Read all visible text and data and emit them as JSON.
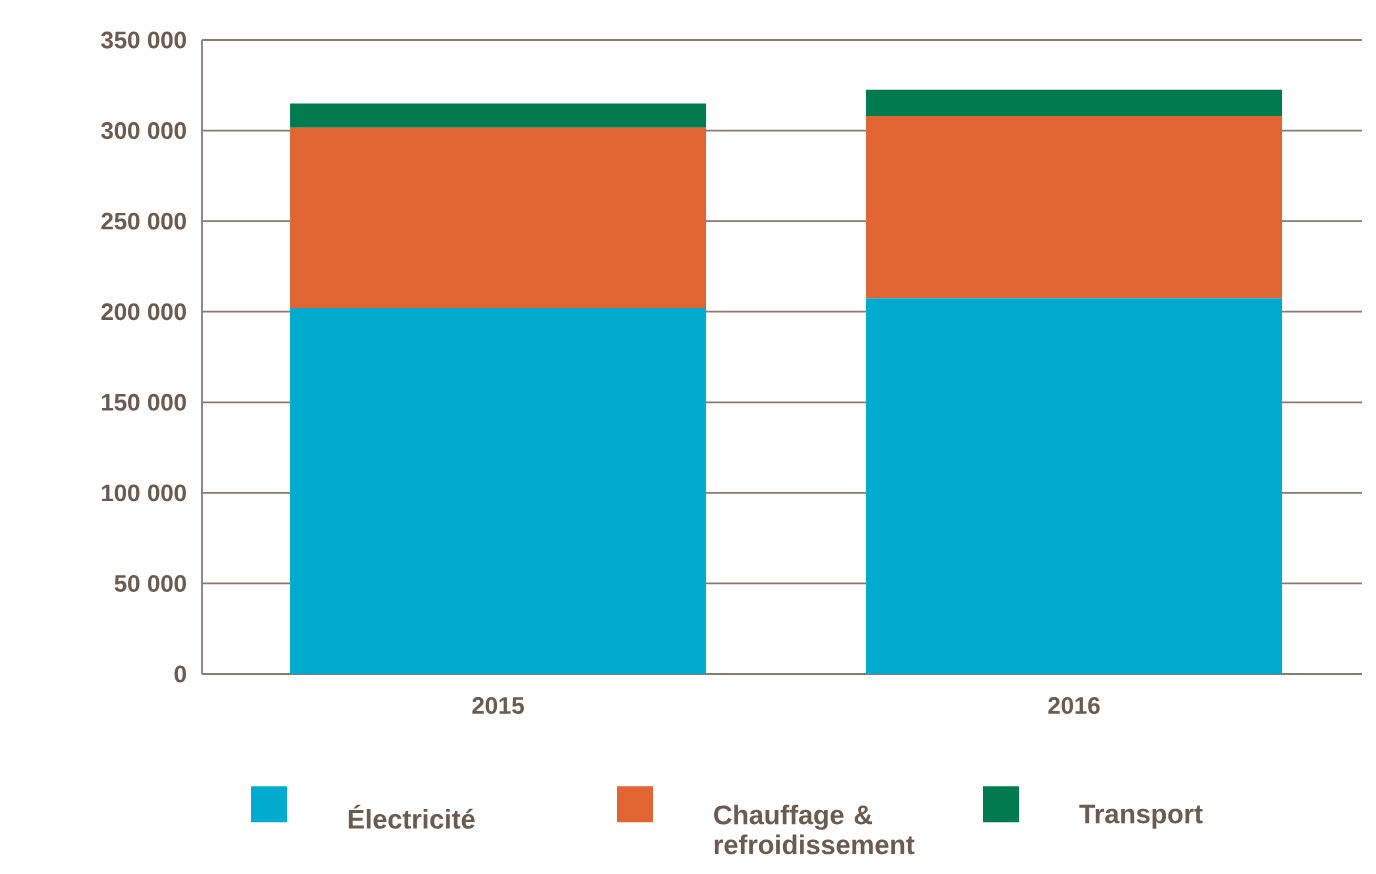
{
  "chart_data": {
    "type": "bar",
    "stacked": true,
    "categories": [
      "2015",
      "2016"
    ],
    "series": [
      {
        "name": "Électricité",
        "color": "#00abcd",
        "values": [
          202000,
          207500
        ]
      },
      {
        "name": "Chauffage & refroidissement",
        "color": "#e06532",
        "values": [
          99500,
          100500
        ]
      },
      {
        "name": "Transport",
        "color": "#007a4f",
        "values": [
          13500,
          14500
        ]
      }
    ],
    "ylim": [
      0,
      350000
    ],
    "yticks": [
      0,
      {
        "value": 50000,
        "label": "50 000"
      },
      {
        "value": 100000,
        "label": "100 000"
      },
      {
        "value": 150000,
        "label": "150 000"
      },
      {
        "value": 200000,
        "label": "200 000"
      },
      {
        "value": 250000,
        "label": "250 000"
      },
      {
        "value": 300000,
        "label": "300 000"
      },
      {
        "value": 350000,
        "label": "350 000"
      }
    ],
    "grid": "y",
    "legend": "bottom"
  }
}
